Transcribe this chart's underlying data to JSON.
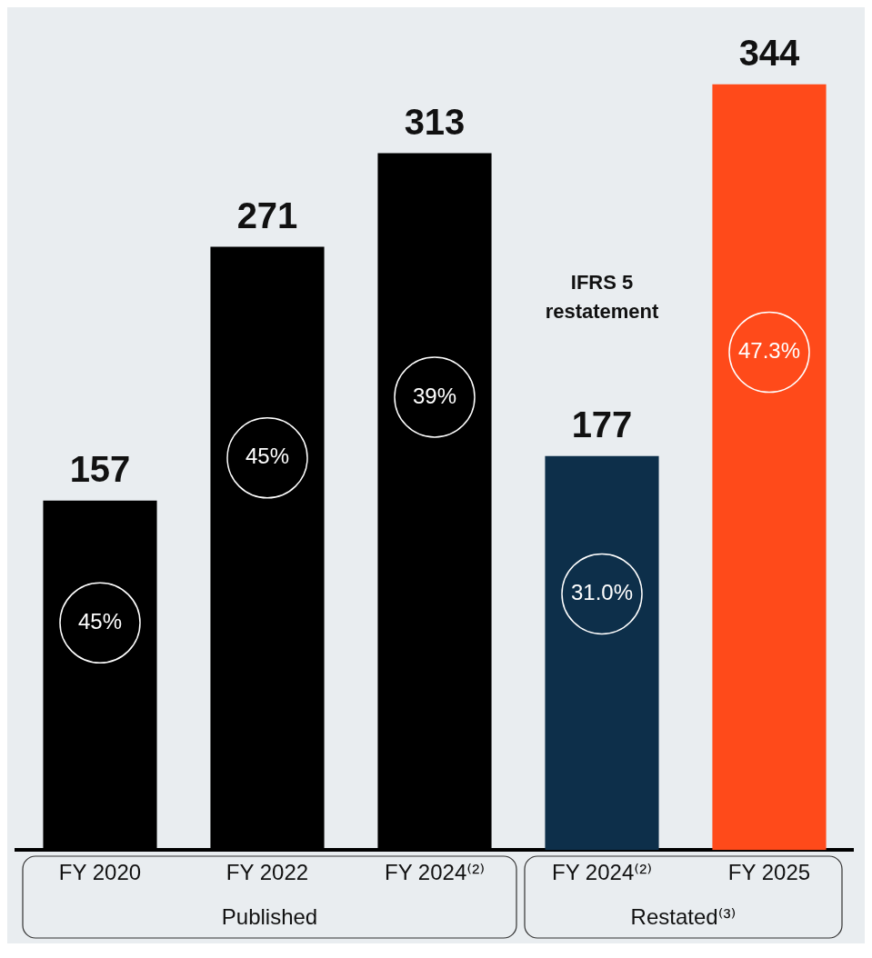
{
  "chart_data": {
    "type": "bar",
    "categories": [
      "FY 2020",
      "FY 2022",
      "FY 2024⁽²⁾",
      "FY 2024⁽²⁾",
      "FY 2025"
    ],
    "values": [
      157,
      271,
      313,
      177,
      344
    ],
    "colors": [
      "#000000",
      "#000000",
      "#000000",
      "#0d2f4a",
      "#ff4a1a"
    ],
    "data_labels": true,
    "grid": false,
    "legend": false,
    "annotations": [
      "IFRS 5 restatement",
      "Published",
      "Restated⁽³⁾",
      "45%",
      "45%",
      "39%",
      "31.0%",
      "47.3%"
    ]
  }
}
